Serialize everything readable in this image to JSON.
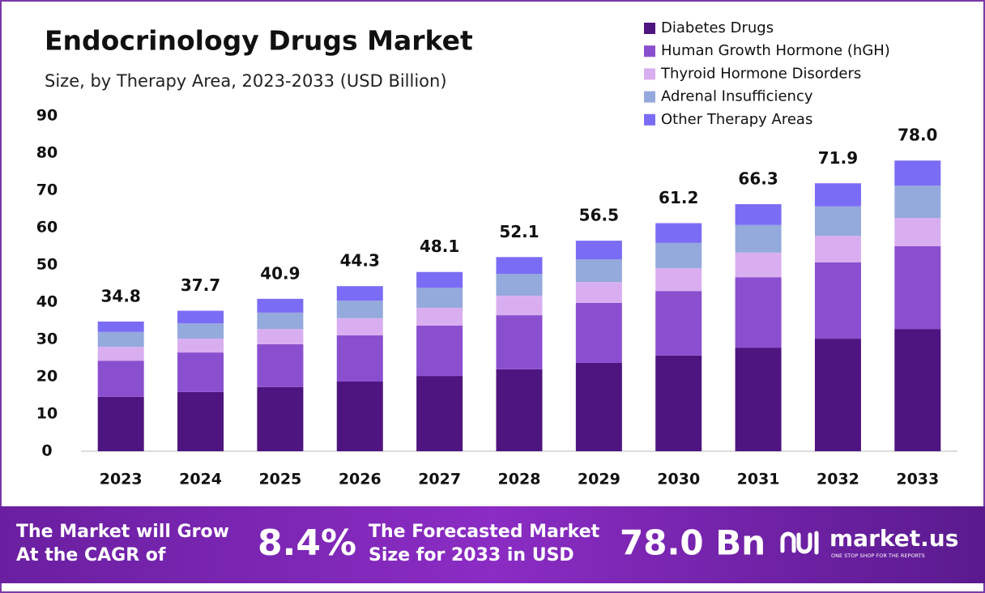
{
  "chart_data": {
    "type": "stacked_bar",
    "title": "Endocrinology Drugs Market",
    "subtitle": "Size, by Therapy Area, 2023-2033 (USD Billion)",
    "categories": [
      "2023",
      "2024",
      "2025",
      "2026",
      "2027",
      "2028",
      "2029",
      "2030",
      "2031",
      "2032",
      "2033"
    ],
    "series": [
      {
        "name": "Diabetes Drugs",
        "color": "#4e1480",
        "values": [
          14.6,
          15.9,
          17.2,
          18.7,
          20.2,
          22.0,
          23.7,
          25.7,
          27.8,
          30.2,
          32.8
        ]
      },
      {
        "name": "Human Growth Hormone (hGH)",
        "color": "#8a4fcf",
        "values": [
          9.7,
          10.6,
          11.5,
          12.4,
          13.5,
          14.5,
          16.1,
          17.3,
          18.9,
          20.5,
          22.2
        ]
      },
      {
        "name": "Thyroid Hormone Disorders",
        "color": "#d9aef0",
        "values": [
          3.7,
          3.7,
          4.1,
          4.6,
          4.8,
          5.2,
          5.6,
          6.1,
          6.6,
          7.1,
          7.6
        ]
      },
      {
        "name": "Adrenal Insufficiency",
        "color": "#94a9dc",
        "values": [
          4.0,
          4.1,
          4.4,
          4.7,
          5.4,
          5.9,
          6.1,
          6.8,
          7.4,
          7.9,
          8.7
        ]
      },
      {
        "name": "Other Therapy Areas",
        "color": "#7b6cf5",
        "values": [
          2.8,
          3.4,
          3.7,
          3.9,
          4.2,
          4.5,
          5.0,
          5.3,
          5.6,
          6.2,
          6.7
        ]
      }
    ],
    "totals": [
      34.8,
      37.7,
      40.9,
      44.3,
      48.1,
      52.1,
      56.5,
      61.2,
      66.3,
      71.9,
      78.0
    ],
    "totals_value_labels": [
      "34.8",
      "37.7",
      "40.9",
      "44.3",
      "48.1",
      "52.1",
      "56.5",
      "61.2",
      "66.3",
      "71.9",
      "78.0"
    ],
    "ylim": [
      0,
      90
    ],
    "yticks": [
      0,
      10,
      20,
      30,
      40,
      50,
      60,
      70,
      80,
      90
    ],
    "grid": false,
    "legend": "top-right"
  },
  "footer": {
    "cagr_label": [
      "The Market will Grow",
      "At the CAGR of"
    ],
    "cagr_value": "8.4%",
    "forecast_label": [
      "The Forecasted Market",
      "Size for 2033 in USD"
    ],
    "forecast_value": "78.0 Bn",
    "brand": "market.us",
    "tagline": "ONE STOP SHOP FOR THE REPORTS"
  }
}
